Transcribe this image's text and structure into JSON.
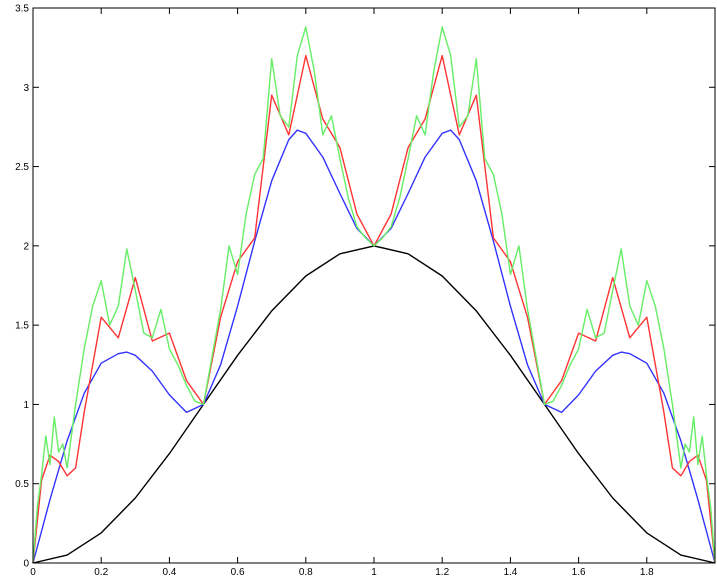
{
  "chart_data": {
    "type": "line",
    "title": "",
    "xlabel": "",
    "ylabel": "",
    "xlim": [
      0,
      2
    ],
    "ylim": [
      0,
      3.5
    ],
    "grid": false,
    "legend": "none",
    "x_ticks": [
      {
        "value": 0,
        "label": "0"
      },
      {
        "value": 0.2,
        "label": "0.2"
      },
      {
        "value": 0.4,
        "label": "0.4"
      },
      {
        "value": 0.6,
        "label": "0.6"
      },
      {
        "value": 0.8,
        "label": "0.8"
      },
      {
        "value": 1,
        "label": "1"
      },
      {
        "value": 1.2,
        "label": "1.2"
      },
      {
        "value": 1.4,
        "label": "1.4"
      },
      {
        "value": 1.6,
        "label": "1.6"
      },
      {
        "value": 1.8,
        "label": "1.8"
      }
    ],
    "y_ticks": [
      {
        "value": 0,
        "label": "0"
      },
      {
        "value": 0.5,
        "label": "0.5"
      },
      {
        "value": 1,
        "label": "1"
      },
      {
        "value": 1.5,
        "label": "1.5"
      },
      {
        "value": 2,
        "label": "2"
      },
      {
        "value": 2.5,
        "label": "2.5"
      },
      {
        "value": 3,
        "label": "3"
      },
      {
        "value": 3.5,
        "label": "3.5"
      }
    ],
    "series": [
      {
        "color": "#000000",
        "x": [
          0,
          0.1,
          0.2,
          0.3,
          0.4,
          0.5,
          0.6,
          0.7,
          0.8,
          0.9,
          1.0,
          1.1,
          1.2,
          1.3,
          1.4,
          1.5,
          1.6,
          1.7,
          1.8,
          1.9,
          2.0
        ],
        "y": [
          0,
          0.05,
          0.19,
          0.41,
          0.69,
          1.0,
          1.31,
          1.59,
          1.81,
          1.95,
          2.0,
          1.95,
          1.81,
          1.59,
          1.31,
          1.0,
          0.69,
          0.41,
          0.19,
          0.05,
          0
        ]
      },
      {
        "color": "#3333ff",
        "x": [
          0,
          0.05,
          0.1,
          0.15,
          0.2,
          0.25,
          0.275,
          0.3,
          0.35,
          0.4,
          0.45,
          0.5,
          0.55,
          0.6,
          0.65,
          0.7,
          0.75,
          0.775,
          0.8,
          0.85,
          0.9,
          0.95,
          1.0,
          1.05,
          1.1,
          1.15,
          1.2,
          1.225,
          1.25,
          1.3,
          1.35,
          1.4,
          1.45,
          1.5,
          1.55,
          1.6,
          1.65,
          1.7,
          1.725,
          1.75,
          1.8,
          1.85,
          1.9,
          1.95,
          2.0
        ],
        "y": [
          0,
          0.4,
          0.77,
          1.07,
          1.26,
          1.32,
          1.33,
          1.31,
          1.21,
          1.06,
          0.95,
          1.0,
          1.25,
          1.62,
          2.03,
          2.41,
          2.67,
          2.73,
          2.71,
          2.56,
          2.33,
          2.11,
          2.0,
          2.11,
          2.33,
          2.56,
          2.71,
          2.73,
          2.67,
          2.41,
          2.03,
          1.62,
          1.25,
          1.0,
          0.95,
          1.06,
          1.21,
          1.31,
          1.33,
          1.32,
          1.26,
          1.07,
          0.77,
          0.4,
          0
        ]
      },
      {
        "color": "#ff3333",
        "x": [
          0,
          0.025,
          0.05,
          0.075,
          0.1,
          0.125,
          0.15,
          0.2,
          0.25,
          0.3,
          0.35,
          0.4,
          0.45,
          0.5,
          0.55,
          0.6,
          0.65,
          0.7,
          0.75,
          0.8,
          0.85,
          0.9,
          0.95,
          1.0,
          1.05,
          1.1,
          1.15,
          1.2,
          1.25,
          1.3,
          1.35,
          1.4,
          1.45,
          1.5,
          1.55,
          1.6,
          1.65,
          1.7,
          1.75,
          1.8,
          1.85,
          1.875,
          1.9,
          1.925,
          1.95,
          1.975,
          2.0
        ],
        "y": [
          0,
          0.52,
          0.68,
          0.64,
          0.55,
          0.6,
          0.95,
          1.55,
          1.42,
          1.8,
          1.4,
          1.45,
          1.15,
          1.0,
          1.55,
          1.9,
          2.05,
          2.95,
          2.7,
          3.2,
          2.8,
          2.62,
          2.2,
          2.0,
          2.2,
          2.62,
          2.8,
          3.2,
          2.7,
          2.95,
          2.05,
          1.9,
          1.55,
          1.0,
          1.15,
          1.45,
          1.4,
          1.8,
          1.42,
          1.55,
          0.95,
          0.6,
          0.55,
          0.64,
          0.68,
          0.52,
          0
        ]
      },
      {
        "color": "#66ee66",
        "x": [
          0,
          0.0125,
          0.025,
          0.0375,
          0.05,
          0.0625,
          0.075,
          0.0875,
          0.1,
          0.125,
          0.15,
          0.175,
          0.2,
          0.225,
          0.25,
          0.275,
          0.3,
          0.325,
          0.35,
          0.375,
          0.4,
          0.425,
          0.45,
          0.475,
          0.5,
          0.525,
          0.55,
          0.575,
          0.6,
          0.625,
          0.65,
          0.675,
          0.7,
          0.725,
          0.75,
          0.775,
          0.8,
          0.825,
          0.85,
          0.875,
          0.9,
          0.925,
          0.95,
          0.975,
          1.0,
          1.025,
          1.05,
          1.075,
          1.1,
          1.125,
          1.15,
          1.175,
          1.2,
          1.225,
          1.25,
          1.275,
          1.3,
          1.325,
          1.35,
          1.375,
          1.4,
          1.425,
          1.45,
          1.475,
          1.5,
          1.525,
          1.55,
          1.575,
          1.6,
          1.625,
          1.65,
          1.675,
          1.7,
          1.725,
          1.75,
          1.775,
          1.8,
          1.825,
          1.85,
          1.875,
          1.9,
          1.9125,
          1.925,
          1.9375,
          1.95,
          1.9625,
          1.975,
          1.9875,
          2.0
        ],
        "y": [
          0,
          0.35,
          0.55,
          0.8,
          0.62,
          0.92,
          0.7,
          0.75,
          0.6,
          1.0,
          1.35,
          1.62,
          1.78,
          1.5,
          1.62,
          1.98,
          1.72,
          1.45,
          1.42,
          1.6,
          1.35,
          1.25,
          1.12,
          1.02,
          1.0,
          1.3,
          1.6,
          2.0,
          1.82,
          2.2,
          2.45,
          2.55,
          3.18,
          2.82,
          2.75,
          3.2,
          3.38,
          3.1,
          2.7,
          2.82,
          2.55,
          2.3,
          2.12,
          2.05,
          2.0,
          2.05,
          2.12,
          2.3,
          2.55,
          2.82,
          2.7,
          3.1,
          3.38,
          3.2,
          2.75,
          2.82,
          3.18,
          2.55,
          2.45,
          2.2,
          1.82,
          2.0,
          1.6,
          1.3,
          1.0,
          1.02,
          1.12,
          1.25,
          1.35,
          1.6,
          1.42,
          1.45,
          1.72,
          1.98,
          1.62,
          1.5,
          1.78,
          1.62,
          1.35,
          1.0,
          0.6,
          0.75,
          0.7,
          0.92,
          0.62,
          0.8,
          0.55,
          0.35,
          0
        ]
      }
    ]
  }
}
